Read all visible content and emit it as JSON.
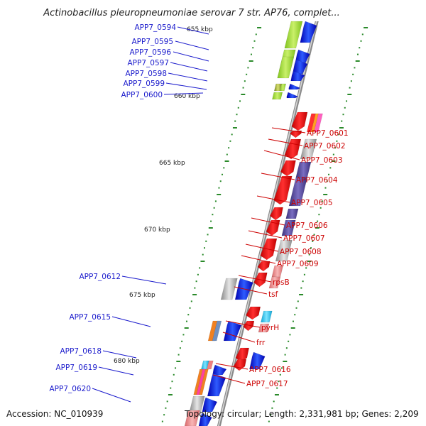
{
  "title": "Actinobacillus pleuropneumoniae serovar 7 str. AP76, complet...",
  "footer": {
    "accession": "Accession: NC_010939",
    "topology": "Topology: circular; Length: 2,331,981 bp; Genes: 2,209"
  },
  "colors": {
    "forward_label": "#1a1acc",
    "reverse_label": "#cc0000",
    "backbone": "#888888",
    "tick": "#2a8a2a"
  },
  "scale": {
    "unit": "kbp",
    "labeled": [
      "655 kbp",
      "660 kbp",
      "665 kbp",
      "670 kbp",
      "675 kbp",
      "680 kbp"
    ]
  },
  "genes_left": [
    {
      "label": "APP7_0594"
    },
    {
      "label": "APP7_0595"
    },
    {
      "label": "APP7_0596"
    },
    {
      "label": "APP7_0597"
    },
    {
      "label": "APP7_0598"
    },
    {
      "label": "APP7_0599"
    },
    {
      "label": "APP7_0600"
    },
    {
      "label": "APP7_0612"
    },
    {
      "label": "APP7_0615"
    },
    {
      "label": "APP7_0618"
    },
    {
      "label": "APP7_0619"
    },
    {
      "label": "APP7_0620"
    }
  ],
  "genes_right": [
    {
      "label": "APP7_0601"
    },
    {
      "label": "APP7_0602"
    },
    {
      "label": "APP7_0603"
    },
    {
      "label": "APP7_0604"
    },
    {
      "label": "APP7_0605"
    },
    {
      "label": "APP7_0606"
    },
    {
      "label": "APP7_0607"
    },
    {
      "label": "APP7_0608"
    },
    {
      "label": "APP7_0609"
    },
    {
      "label": "rpsB"
    },
    {
      "label": "tsf"
    },
    {
      "label": "pyrH"
    },
    {
      "label": "frr"
    },
    {
      "label": "APP7_0616"
    },
    {
      "label": "APP7_0617"
    }
  ]
}
